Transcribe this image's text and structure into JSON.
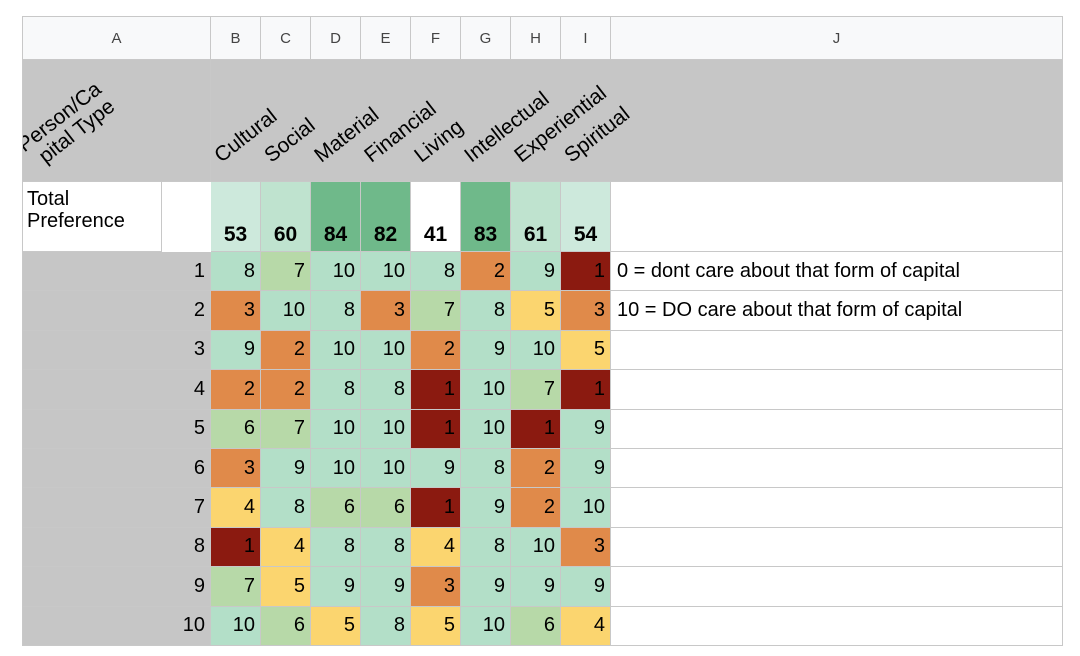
{
  "columns": [
    "A",
    "B",
    "C",
    "D",
    "E",
    "F",
    "G",
    "H",
    "I",
    "J"
  ],
  "corner_label": [
    "Person/Ca",
    "pital Type"
  ],
  "capital_types": [
    "Cultural",
    "Social",
    "Material",
    "Financial",
    "Living",
    "Intellectual",
    "Experiential",
    "Spiritual"
  ],
  "total_label": "Total Preference",
  "totals": [
    53,
    60,
    84,
    82,
    41,
    83,
    61,
    54
  ],
  "rows": [
    {
      "id": "1",
      "values": [
        8,
        7,
        10,
        10,
        8,
        2,
        9,
        1
      ]
    },
    {
      "id": "2",
      "values": [
        3,
        10,
        8,
        3,
        7,
        8,
        5,
        3
      ]
    },
    {
      "id": "3",
      "values": [
        9,
        2,
        10,
        10,
        2,
        9,
        10,
        5
      ]
    },
    {
      "id": "4",
      "values": [
        2,
        2,
        8,
        8,
        1,
        10,
        7,
        1
      ]
    },
    {
      "id": "5",
      "values": [
        6,
        7,
        10,
        10,
        1,
        10,
        1,
        9
      ]
    },
    {
      "id": "6",
      "values": [
        3,
        9,
        10,
        10,
        9,
        8,
        2,
        9
      ]
    },
    {
      "id": "7",
      "values": [
        4,
        8,
        6,
        6,
        1,
        9,
        2,
        10
      ]
    },
    {
      "id": "8",
      "values": [
        1,
        4,
        8,
        8,
        4,
        8,
        10,
        3
      ]
    },
    {
      "id": "9",
      "values": [
        7,
        5,
        9,
        9,
        3,
        9,
        9,
        9
      ]
    },
    {
      "id": "10",
      "values": [
        10,
        6,
        5,
        8,
        5,
        10,
        6,
        4
      ]
    }
  ],
  "notes": [
    "0 = dont care about that form of capital",
    "10 = DO care about that form of capital"
  ],
  "value_colors": {
    "1": "#8b1a10",
    "2": "#e08a4a",
    "3": "#e08a4a",
    "4": "#fbd56f",
    "5": "#fbd56f",
    "6": "#b7d9a8",
    "7": "#b7d9a8",
    "8": "#b3dfc8",
    "9": "#b3dfc8",
    "10": "#b3dfc8"
  },
  "total_colors": {
    "41": "#ffffff",
    "53": "#cde9dc",
    "54": "#cde9dc",
    "60": "#bfe3cf",
    "61": "#bfe3cf",
    "82": "#6fb98a",
    "83": "#6fb98a",
    "84": "#6fb98a"
  }
}
